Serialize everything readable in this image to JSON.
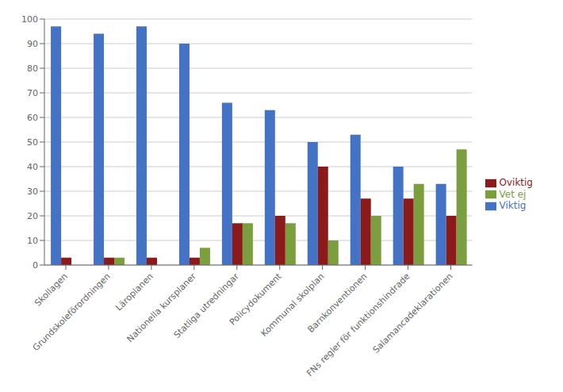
{
  "chart_data": {
    "type": "bar",
    "categories": [
      "Skollagen",
      "Grundskoleförordningen",
      "Läroplanen",
      "Nationella kursplaner",
      "Statliga utredningar",
      "Policydokument",
      "Kommunal skolplan",
      "Barnkonventionen",
      "FNs regler för funktionshindrade",
      "Salamancadeklarationen"
    ],
    "series": [
      {
        "name": "Viktig",
        "color": "#4472C4",
        "values": [
          97,
          94,
          97,
          90,
          66,
          63,
          50,
          53,
          40,
          33
        ]
      },
      {
        "name": "Oviktig",
        "color": "#8B1A1A",
        "values": [
          3,
          3,
          3,
          3,
          17,
          20,
          40,
          27,
          27,
          20
        ]
      },
      {
        "name": "Vet ej",
        "color": "#7B9E3E",
        "values": [
          0,
          3,
          0,
          7,
          17,
          17,
          10,
          20,
          33,
          47
        ]
      }
    ],
    "ylim": [
      0,
      100
    ],
    "yticks": [
      0,
      10,
      20,
      30,
      40,
      50,
      60,
      70,
      80,
      90,
      100
    ],
    "grid": true,
    "legend": "right"
  }
}
